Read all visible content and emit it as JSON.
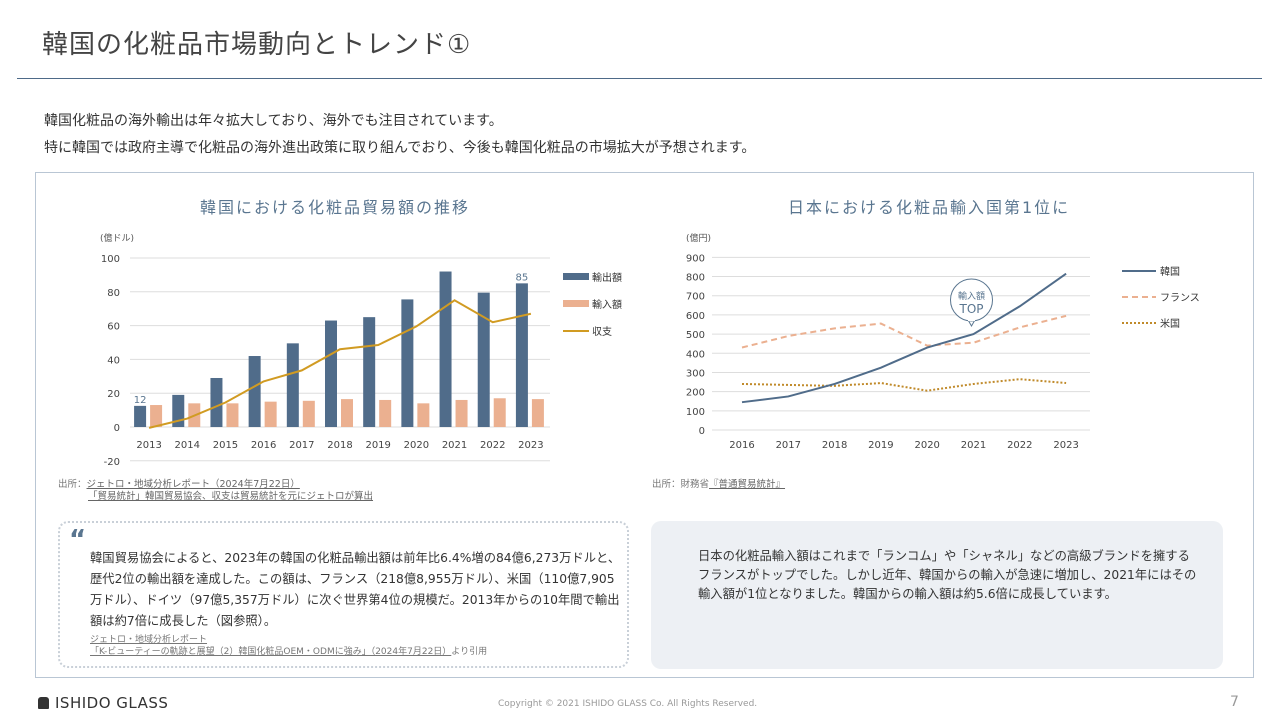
{
  "header": {
    "title": "韓国の化粧品市場動向とトレンド①"
  },
  "intro": [
    "韓国化粧品の海外輸出は年々拡大しており、海外でも注目されています。",
    "特に韓国では政府主導で化粧品の海外進出政策に取り組んでおり、今後も韓国化粧品の市場拡大が予想されます。"
  ],
  "left_source": {
    "prefix": "出所：",
    "line1": "ジェトロ・地域分析レポート（2024年7月22日）",
    "line2": "「貿易統計」韓国貿易協会、収支は貿易統計を元にジェトロが算出"
  },
  "right_source": {
    "prefix": "出所：財務省",
    "link": "『普通貿易統計』"
  },
  "quote": {
    "text": "韓国貿易協会によると、2023年の韓国の化粧品輸出額は前年比6.4%増の84億6,273万ドルと、歴代2位の輸出額を達成した。この額は、フランス（218億8,955万ドル）、米国（110億7,905万ドル）、ドイツ（97億5,357万ドル）に次ぐ世界第4位の規模だ。2013年からの10年間で輸出額は約7倍に成長した（図参照）。",
    "source1": "ジェトロ・地域分析レポート",
    "source2": "「K-ビューティーの軌跡と展望（2）韓国化粧品OEM・ODMに強み」（2024年7月22日）",
    "source_suffix": "より引用"
  },
  "note": {
    "text": "日本の化粧品輸入額はこれまで「ランコム」や「シャネル」などの高級ブランドを擁するフランスがトップでした。しかし近年、韓国からの輸入が急速に増加し、2021年にはその輸入額が1位となりました。韓国からの輸入額は約5.6倍に成長しています。"
  },
  "footer": {
    "logo": "ISHIDO GLASS",
    "copyright": "Copyright © 2021 ISHIDO GLASS Co. All Rights Reserved.",
    "page": "7"
  },
  "chart_data": [
    {
      "type": "bar",
      "title": "韓国における化粧品貿易額の推移",
      "ylabel": "(億ドル)",
      "ylim": [
        -20,
        100
      ],
      "yticks": [
        -20,
        0,
        20,
        40,
        60,
        80,
        100
      ],
      "categories": [
        "2013",
        "2014",
        "2015",
        "2016",
        "2017",
        "2018",
        "2019",
        "2020",
        "2021",
        "2022",
        "2023"
      ],
      "series": [
        {
          "name": "輸出額",
          "type": "bar",
          "color": "#506c8a",
          "values": [
            12.5,
            19,
            29,
            42,
            49.5,
            63,
            65,
            75.5,
            92,
            79.5,
            85
          ]
        },
        {
          "name": "輸入額",
          "type": "bar",
          "color": "#ebb090",
          "values": [
            13,
            14,
            14,
            15,
            15.5,
            16.5,
            16,
            14,
            16,
            17,
            16.5
          ]
        },
        {
          "name": "収支",
          "type": "line",
          "color": "#d19b22",
          "values": [
            -0.5,
            5,
            14.5,
            27,
            33.5,
            46,
            48.5,
            59.5,
            75,
            62,
            67
          ]
        }
      ],
      "data_labels": {
        "first": "12",
        "last": "85"
      },
      "legend": "right"
    },
    {
      "type": "line",
      "title": "日本における化粧品輸入国第1位に",
      "ylabel": "(億円)",
      "ylim": [
        0,
        900
      ],
      "yticks": [
        0,
        100,
        200,
        300,
        400,
        500,
        600,
        700,
        800,
        900
      ],
      "categories": [
        "2016",
        "2017",
        "2018",
        "2019",
        "2020",
        "2021",
        "2022",
        "2023"
      ],
      "series": [
        {
          "name": "韓国",
          "style": "solid",
          "color": "#506c8a",
          "values": [
            145,
            175,
            240,
            325,
            430,
            500,
            645,
            815
          ]
        },
        {
          "name": "フランス",
          "style": "dashed",
          "color": "#ebb090",
          "values": [
            430,
            490,
            530,
            555,
            440,
            455,
            535,
            595
          ]
        },
        {
          "name": "米国",
          "style": "dotted",
          "color": "#c08a2a",
          "values": [
            240,
            235,
            230,
            245,
            205,
            240,
            265,
            245
          ]
        }
      ],
      "annotation": {
        "line1": "輸入額",
        "line2": "TOP",
        "category": "2021"
      },
      "legend": "right"
    }
  ]
}
